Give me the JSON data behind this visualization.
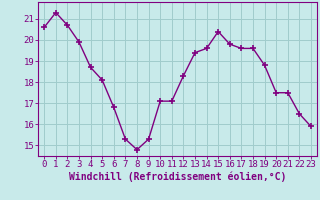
{
  "x": [
    0,
    1,
    2,
    3,
    4,
    5,
    6,
    7,
    8,
    9,
    10,
    11,
    12,
    13,
    14,
    15,
    16,
    17,
    18,
    19,
    20,
    21,
    22,
    23
  ],
  "y": [
    20.6,
    21.3,
    20.7,
    19.9,
    18.7,
    18.1,
    16.8,
    15.3,
    14.8,
    15.3,
    17.1,
    17.1,
    18.3,
    19.4,
    19.6,
    20.4,
    19.8,
    19.6,
    19.6,
    18.8,
    17.5,
    17.5,
    16.5,
    15.9
  ],
  "line_color": "#800080",
  "marker": "+",
  "marker_size": 4,
  "bg_color": "#c8eaea",
  "grid_color": "#a0cccc",
  "ylabel_ticks": [
    15,
    16,
    17,
    18,
    19,
    20,
    21
  ],
  "ylim": [
    14.5,
    21.8
  ],
  "xlim": [
    -0.5,
    23.5
  ],
  "xlabel": "Windchill (Refroidissement éolien,°C)",
  "tick_color": "#800080",
  "label_color": "#800080",
  "font_size": 6.5,
  "label_font_size": 7,
  "line_width": 1.0
}
